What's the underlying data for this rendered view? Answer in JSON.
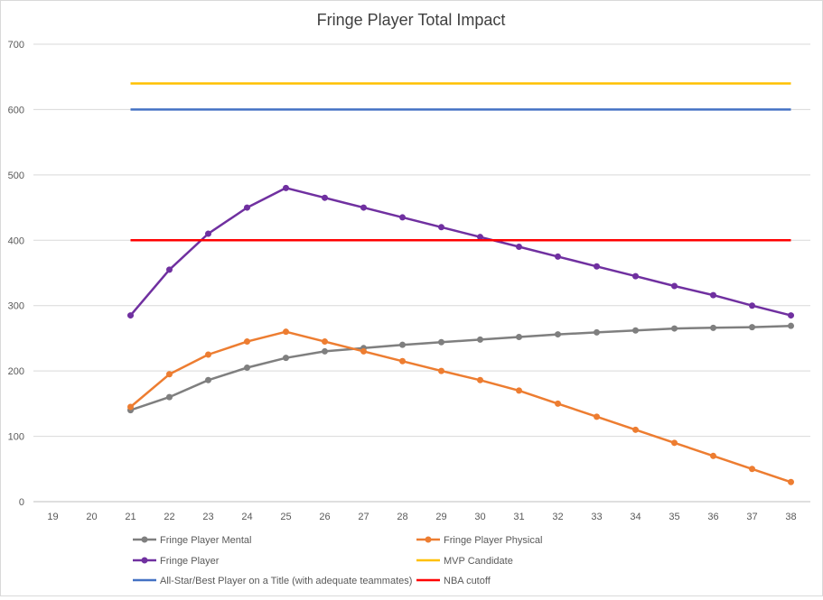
{
  "chart_data": {
    "type": "line",
    "title": "Fringe Player Total Impact",
    "xlabel": "",
    "ylabel": "",
    "categories": [
      "19",
      "20",
      "21",
      "22",
      "23",
      "24",
      "25",
      "26",
      "27",
      "28",
      "29",
      "30",
      "31",
      "32",
      "33",
      "34",
      "35",
      "36",
      "37",
      "38"
    ],
    "ylim": [
      0,
      700
    ],
    "yticks": [
      0,
      100,
      200,
      300,
      400,
      500,
      600,
      700
    ],
    "grid": "horizontal",
    "legend_position": "bottom",
    "series": [
      {
        "name": "Fringe Player Mental",
        "color": "#7f7f7f",
        "markers": true,
        "values": [
          null,
          null,
          140,
          160,
          186,
          205,
          220,
          230,
          235,
          240,
          244,
          248,
          252,
          256,
          259,
          262,
          265,
          266,
          267,
          269
        ]
      },
      {
        "name": "Fringe Player Physical",
        "color": "#ed7d31",
        "markers": true,
        "values": [
          null,
          null,
          145,
          195,
          225,
          245,
          260,
          245,
          230,
          215,
          200,
          186,
          170,
          150,
          130,
          110,
          90,
          70,
          50,
          30
        ]
      },
      {
        "name": "Fringe Player",
        "color": "#7030a0",
        "markers": true,
        "values": [
          null,
          null,
          285,
          355,
          410,
          450,
          480,
          465,
          450,
          435,
          420,
          405,
          390,
          375,
          360,
          345,
          330,
          316,
          300,
          285
        ]
      },
      {
        "name": "MVP Candidate",
        "color": "#ffc000",
        "markers": false,
        "values": [
          null,
          null,
          640,
          640,
          640,
          640,
          640,
          640,
          640,
          640,
          640,
          640,
          640,
          640,
          640,
          640,
          640,
          640,
          640,
          640
        ]
      },
      {
        "name": "All-Star/Best Player on a Title (with adequate teammates)",
        "color": "#4472c4",
        "markers": false,
        "values": [
          null,
          null,
          600,
          600,
          600,
          600,
          600,
          600,
          600,
          600,
          600,
          600,
          600,
          600,
          600,
          600,
          600,
          600,
          600,
          600
        ]
      },
      {
        "name": "NBA cutoff",
        "color": "#ff0000",
        "markers": false,
        "values": [
          null,
          null,
          400,
          400,
          400,
          400,
          400,
          400,
          400,
          400,
          400,
          400,
          400,
          400,
          400,
          400,
          400,
          400,
          400,
          400
        ]
      }
    ]
  }
}
